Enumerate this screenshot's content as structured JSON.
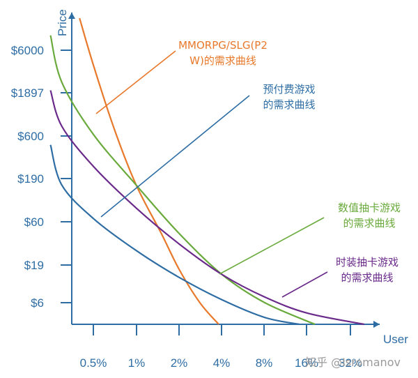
{
  "chart_data": {
    "type": "line",
    "xlabel": "User",
    "ylabel": "Price",
    "x_ticks": [
      "0.5%",
      "1%",
      "2%",
      "4%",
      "8%",
      "16%",
      "32%"
    ],
    "y_ticks": [
      "$6000",
      "$1897",
      "$600",
      "$190",
      "$60",
      "$19",
      "$6"
    ],
    "y_scale": "log",
    "x_scale": "log",
    "series": [
      {
        "name": "MMORPG/SLG(P2\nW)的需求曲线",
        "color": "#e8782a",
        "points": [
          [
            0.4,
            50000
          ],
          [
            0.5,
            4000
          ],
          [
            0.7,
            700
          ],
          [
            1.0,
            150
          ],
          [
            1.5,
            40
          ],
          [
            2.0,
            15
          ],
          [
            2.8,
            6
          ],
          [
            3.8,
            3
          ]
        ]
      },
      {
        "name": "预付费游戏\n的需求曲线",
        "color": "#2e6da4",
        "points": [
          [
            0.25,
            450
          ],
          [
            0.3,
            150
          ],
          [
            0.5,
            60
          ],
          [
            1.0,
            25
          ],
          [
            2.0,
            12
          ],
          [
            4.0,
            6.5
          ],
          [
            8.0,
            4
          ],
          [
            14.0,
            3
          ]
        ]
      },
      {
        "name": "数值抽卡游戏\n的需求曲线",
        "color": "#6aaa3c",
        "points": [
          [
            0.25,
            9000
          ],
          [
            0.3,
            2500
          ],
          [
            0.5,
            600
          ],
          [
            1.0,
            150
          ],
          [
            2.0,
            40
          ],
          [
            4.0,
            13
          ],
          [
            8.0,
            6
          ],
          [
            18.0,
            3
          ]
        ]
      },
      {
        "name": "时装抽卡游戏\n的需求曲线",
        "color": "#6a2a8a",
        "points": [
          [
            0.25,
            2000
          ],
          [
            0.3,
            750
          ],
          [
            0.5,
            250
          ],
          [
            1.0,
            80
          ],
          [
            2.0,
            30
          ],
          [
            4.0,
            13
          ],
          [
            8.0,
            7
          ],
          [
            16.0,
            4.5
          ],
          [
            40.0,
            3
          ]
        ]
      }
    ],
    "annotations": [
      {
        "text": "MMORPG/SLG(P2\nW)的需求曲线",
        "color": "#e8782a"
      },
      {
        "text": "预付费游戏\n的需求曲线",
        "color": "#2e6da4"
      },
      {
        "text": "数值抽卡游戏\n的需求曲线",
        "color": "#6aaa3c"
      },
      {
        "text": "时装抽卡游戏\n的需求曲线",
        "color": "#6a2a8a"
      }
    ]
  },
  "watermark": "知乎 @Isromanov"
}
